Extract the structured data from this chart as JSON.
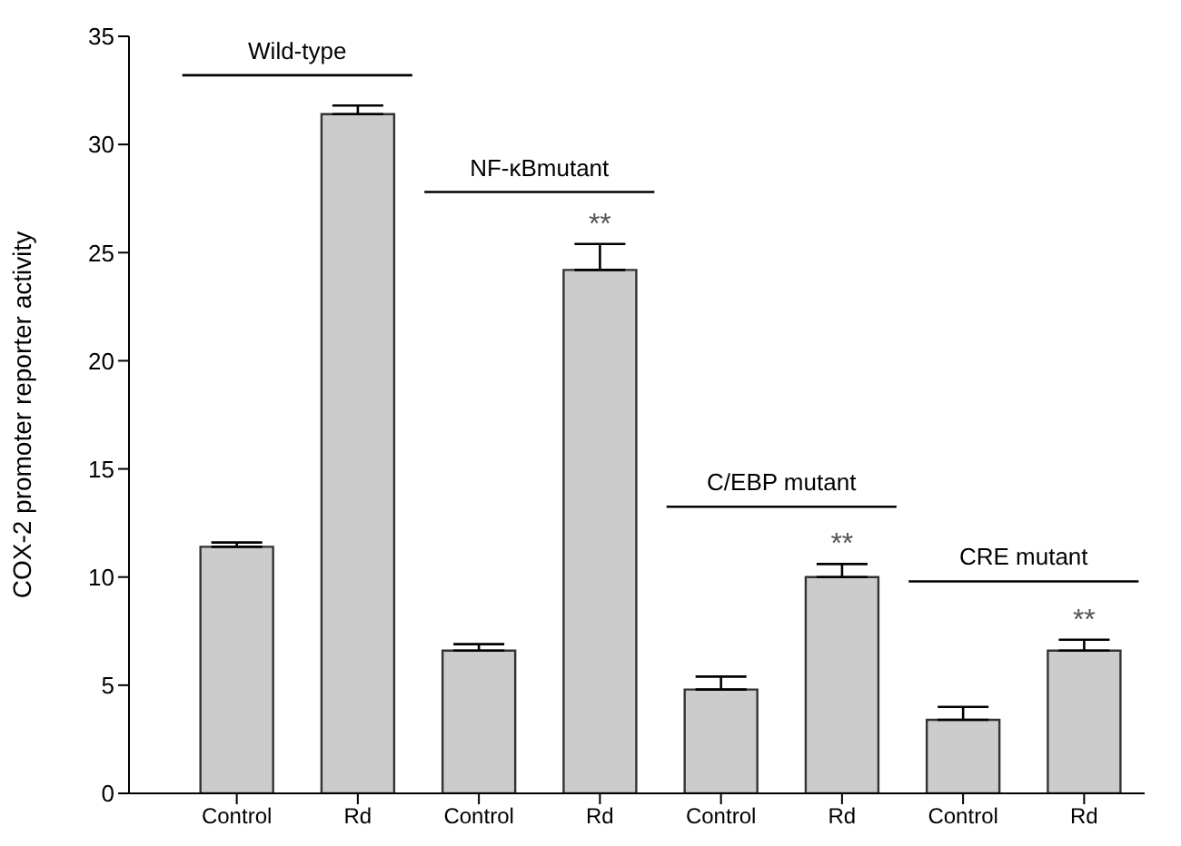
{
  "chart_data": {
    "type": "bar",
    "ylabel": "COX-2 promoter reporter activity",
    "categories": [
      "Control",
      "Rd",
      "Control",
      "Rd",
      "Control",
      "Rd",
      "Control",
      "Rd"
    ],
    "values": [
      11.4,
      31.4,
      6.6,
      24.2,
      4.8,
      10,
      3.4,
      6.6
    ],
    "errors": [
      [
        11.4,
        11.6
      ],
      [
        31.4,
        31.8
      ],
      [
        6.6,
        6.9
      ],
      [
        24.2,
        25.4
      ],
      [
        4.8,
        5.4
      ],
      [
        10,
        10.6
      ],
      [
        3.4,
        4.0
      ],
      [
        6.6,
        7.1
      ]
    ],
    "color": "#cccccc",
    "ylim": [
      0,
      35
    ],
    "yticks": [
      0,
      5,
      10,
      15,
      20,
      25,
      30,
      35
    ],
    "grid": false,
    "legend": false,
    "annotations": [
      "Wild-type",
      "NF-κBmutant",
      "C/EBP mutant",
      "CRE mutant",
      "**",
      "**",
      "**"
    ]
  }
}
